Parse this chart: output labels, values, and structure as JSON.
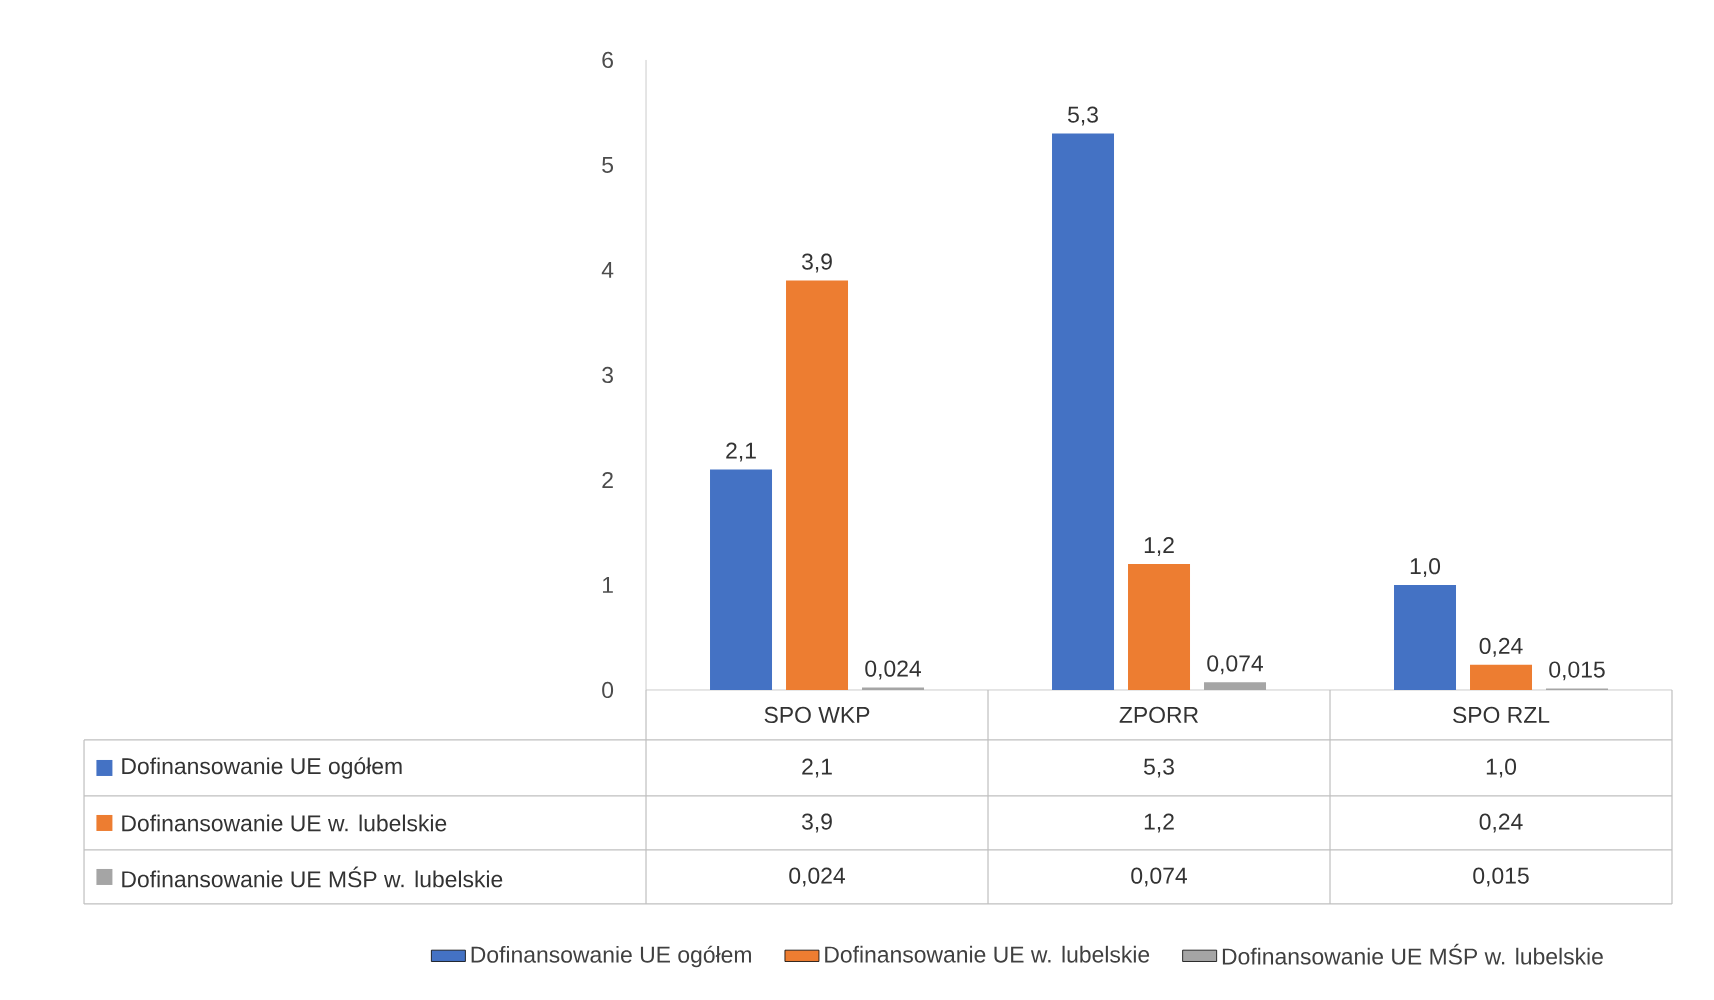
{
  "chart_data": {
    "type": "bar",
    "categories": [
      "SPO WKP",
      "ZPORR",
      "SPO RZL"
    ],
    "series": [
      {
        "name": "Dofinansowanie UE ogółem",
        "color": "#4472c4",
        "values": [
          2.1,
          5.3,
          1.0
        ],
        "value_labels": [
          "2,1",
          "5,3",
          "1,0"
        ]
      },
      {
        "name": "Dofinansowanie UE w. lubelskie",
        "color": "#ed7d31",
        "values": [
          3.9,
          1.2,
          0.24
        ],
        "value_labels": [
          "3,9",
          "1,2",
          "0,24"
        ]
      },
      {
        "name": "Dofinansowanie UE MŚP w. lubelskie",
        "color": "#a5a5a5",
        "values": [
          0.024,
          0.074,
          0.015
        ],
        "value_labels": [
          "0,024",
          "0,074",
          "0,015"
        ]
      }
    ],
    "ylim": [
      0,
      6
    ],
    "yticks": [
      0,
      1,
      2,
      3,
      4,
      5,
      6
    ],
    "legend": "bottom"
  }
}
